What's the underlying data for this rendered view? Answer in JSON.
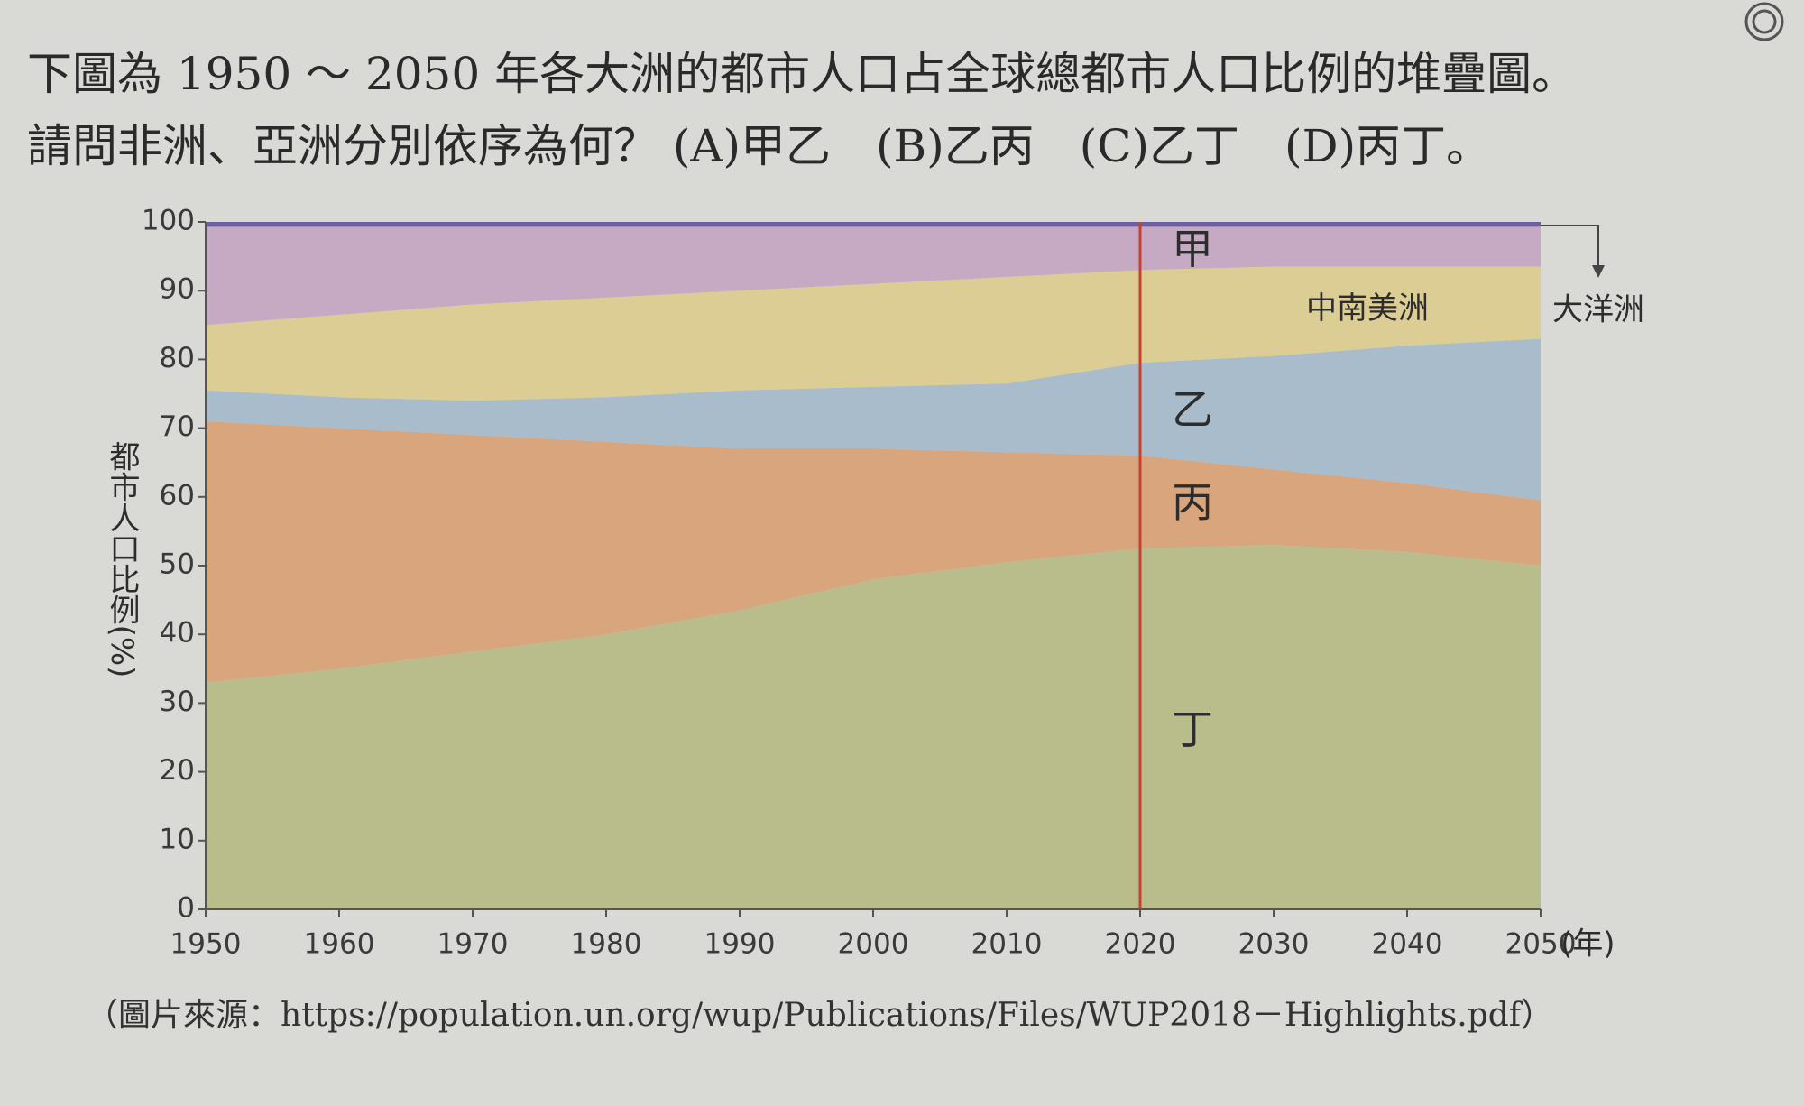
{
  "question": {
    "lines": [
      "下圖為 1950 ～ 2050 年各大洲的都市人口占全球總都市人口比例的堆疊圖。",
      "請問非洲、亞洲分別依序為何？ (A)甲乙　(B)乙丙　(C)乙丁　(D)丙丁。"
    ]
  },
  "chart_data": {
    "type": "stacked_area",
    "ylabel": "都市人口比例(%)",
    "xlabel": "(年)",
    "x": [
      1950,
      1960,
      1970,
      1980,
      1990,
      2000,
      2010,
      2020,
      2030,
      2040,
      2050
    ],
    "xlim": [
      1950,
      2050
    ],
    "xticks": [
      1950,
      1960,
      1970,
      1980,
      1990,
      2000,
      2010,
      2020,
      2030,
      2040,
      2050
    ],
    "ylim": [
      0,
      100
    ],
    "yticks": [
      0,
      10,
      20,
      30,
      40,
      50,
      60,
      70,
      80,
      90,
      100
    ],
    "series": [
      {
        "name": "丁",
        "color": "#b9bd8c",
        "values": [
          33,
          35,
          37.5,
          40,
          43.5,
          48,
          50.5,
          52.5,
          53,
          52,
          50
        ]
      },
      {
        "name": "丙",
        "color": "#d8a57c",
        "values": [
          38,
          35,
          31.5,
          28,
          23.5,
          19,
          16,
          13.5,
          11,
          10,
          9.5
        ]
      },
      {
        "name": "乙",
        "color": "#a8bccb",
        "values": [
          4.5,
          4.5,
          5,
          6.5,
          8.5,
          9,
          10,
          13.5,
          16.5,
          20,
          23.5
        ]
      },
      {
        "name": "中南美洲",
        "color": "#dccd94",
        "values": [
          9.5,
          12,
          14,
          14.5,
          14.5,
          15,
          15.5,
          13.5,
          13,
          11.5,
          10.5
        ]
      },
      {
        "name": "甲",
        "color": "#c6aac4",
        "values": [
          14.3,
          12.8,
          11.3,
          10.3,
          9.3,
          8.3,
          7.3,
          6.3,
          5.8,
          5.8,
          5.8
        ]
      },
      {
        "name": "大洋洲",
        "color": "#6e5fa0",
        "values": [
          0.7,
          0.7,
          0.7,
          0.7,
          0.7,
          0.7,
          0.7,
          0.7,
          0.7,
          0.7,
          0.7
        ]
      }
    ],
    "vline": {
      "x": 2020,
      "color": "#c8402f"
    },
    "source": "（圖片來源：https://population.un.org/wup/Publications/Files/WUP2018－Highlights.pdf）"
  }
}
